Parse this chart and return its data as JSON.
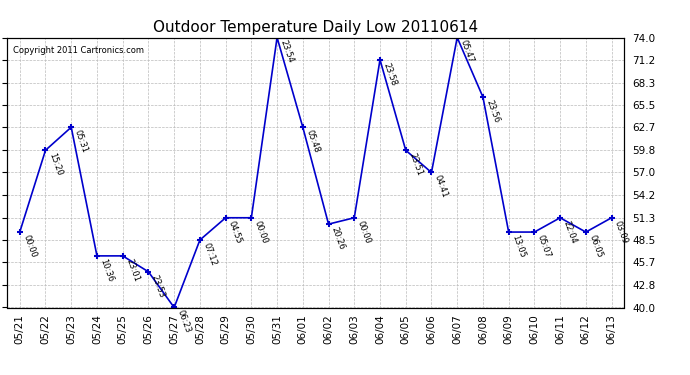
{
  "title": "Outdoor Temperature Daily Low 20110614",
  "copyright": "Copyright 2011 Cartronics.com",
  "background_color": "#ffffff",
  "line_color": "#0000cc",
  "point_color": "#0000cc",
  "grid_color": "#bbbbbb",
  "ylim": [
    40.0,
    74.0
  ],
  "yticks": [
    40.0,
    42.8,
    45.7,
    48.5,
    51.3,
    54.2,
    57.0,
    59.8,
    62.7,
    65.5,
    68.3,
    71.2,
    74.0
  ],
  "values": [
    49.5,
    59.8,
    62.7,
    46.5,
    46.5,
    44.5,
    40.0,
    48.5,
    51.3,
    51.3,
    74.0,
    62.7,
    50.5,
    51.3,
    71.2,
    59.8,
    57.0,
    74.0,
    66.5,
    49.5,
    49.5,
    51.3,
    49.5,
    51.3
  ],
  "time_labels": [
    "00:00",
    "15:20",
    "05:31",
    "10:36",
    "23:01",
    "23:53",
    "06:23",
    "07:12",
    "04:55",
    "00:00",
    "23:54",
    "05:48",
    "20:26",
    "00:00",
    "23:58",
    "23:51",
    "04:41",
    "05:47",
    "23:56",
    "13:05",
    "05:07",
    "22:04",
    "06:05",
    "03:09"
  ],
  "xlabel_dates": [
    "05/21",
    "05/22",
    "05/23",
    "05/24",
    "05/25",
    "05/26",
    "05/27",
    "05/28",
    "05/29",
    "05/30",
    "05/31",
    "06/01",
    "06/02",
    "06/03",
    "06/04",
    "06/05",
    "06/06",
    "06/07",
    "06/08",
    "06/09",
    "06/10",
    "06/11",
    "06/12",
    "06/13"
  ],
  "title_fontsize": 11,
  "tick_fontsize": 7.5,
  "label_fontsize": 6,
  "annotation_fontsize": 6
}
